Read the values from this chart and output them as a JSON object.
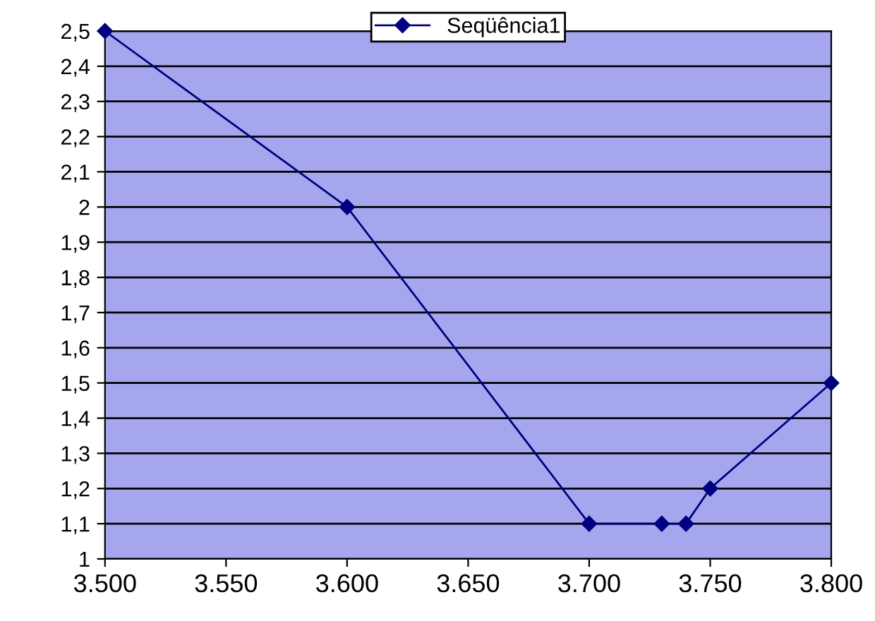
{
  "chart_data": {
    "type": "line",
    "x": [
      3500,
      3600,
      3700,
      3730,
      3740,
      3750,
      3800
    ],
    "series": [
      {
        "name": "Seqüência1",
        "color": "#000080",
        "values": [
          2.5,
          2.0,
          1.1,
          1.1,
          1.1,
          1.2,
          1.5
        ]
      }
    ],
    "xlim": [
      3500,
      3800
    ],
    "xticks": [
      {
        "value": 3500,
        "label": "3.500"
      },
      {
        "value": 3550,
        "label": "3.550"
      },
      {
        "value": 3600,
        "label": "3.600"
      },
      {
        "value": 3650,
        "label": "3.650"
      },
      {
        "value": 3700,
        "label": "3.700"
      },
      {
        "value": 3750,
        "label": "3.750"
      },
      {
        "value": 3800,
        "label": "3.800"
      }
    ],
    "ylim": [
      1,
      2.5
    ],
    "yticks": [
      1,
      {
        "value": 1.1,
        "label": "1,1"
      },
      {
        "value": 1.2,
        "label": "1,2"
      },
      {
        "value": 1.3,
        "label": "1,3"
      },
      {
        "value": 1.4,
        "label": "1,4"
      },
      {
        "value": 1.5,
        "label": "1,5"
      },
      {
        "value": 1.6,
        "label": "1,6"
      },
      {
        "value": 1.7,
        "label": "1,7"
      },
      {
        "value": 1.8,
        "label": "1,8"
      },
      {
        "value": 1.9,
        "label": "1,9"
      },
      2,
      {
        "value": 2.1,
        "label": "2,1"
      },
      {
        "value": 2.2,
        "label": "2,2"
      },
      {
        "value": 2.3,
        "label": "2,3"
      },
      {
        "value": 2.4,
        "label": "2,4"
      },
      {
        "value": 2.5,
        "label": "2,5"
      }
    ],
    "grid": "y",
    "legend": "top",
    "marker": "diamond",
    "line_style": "solid"
  }
}
